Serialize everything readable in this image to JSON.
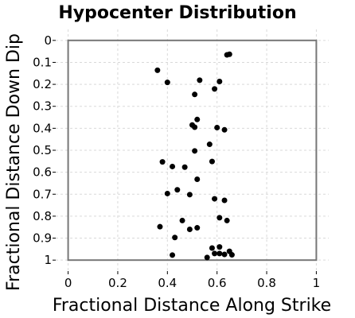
{
  "chart_data": {
    "type": "scatter",
    "title": "Hypocenter Distribution",
    "xlabel": "Fractional Distance Along Strike",
    "ylabel": "Fractional Distance Down Dip",
    "xlim": [
      -0.05,
      1.05
    ],
    "ylim": [
      1.05,
      -0.05
    ],
    "y_inverted": true,
    "grid": true,
    "xticks": [
      0,
      0.2,
      0.4,
      0.6,
      0.8,
      1
    ],
    "xtick_labels": [
      "0",
      "0.2",
      "0.4",
      "0.6",
      "0.8",
      "1"
    ],
    "yticks": [
      0,
      0.1,
      0.2,
      0.3,
      0.4,
      0.5,
      0.6,
      0.7,
      0.8,
      0.9,
      1
    ],
    "ytick_labels": [
      "0",
      "0.1",
      "0.2",
      "0.3",
      "0.4",
      "0.5",
      "0.6",
      "0.7",
      "0.8",
      "0.9",
      "1"
    ],
    "rupture_rectangle": {
      "x": [
        0,
        1
      ],
      "y": [
        0,
        1
      ]
    },
    "marker_color": "#000000",
    "frame_color": "#777777",
    "points": [
      {
        "x": 0.64,
        "y": 0.066
      },
      {
        "x": 0.65,
        "y": 0.063
      },
      {
        "x": 0.36,
        "y": 0.136
      },
      {
        "x": 0.4,
        "y": 0.191
      },
      {
        "x": 0.53,
        "y": 0.181
      },
      {
        "x": 0.61,
        "y": 0.187
      },
      {
        "x": 0.59,
        "y": 0.221
      },
      {
        "x": 0.51,
        "y": 0.246
      },
      {
        "x": 0.52,
        "y": 0.36
      },
      {
        "x": 0.5,
        "y": 0.385
      },
      {
        "x": 0.51,
        "y": 0.395
      },
      {
        "x": 0.6,
        "y": 0.397
      },
      {
        "x": 0.63,
        "y": 0.407
      },
      {
        "x": 0.57,
        "y": 0.473
      },
      {
        "x": 0.51,
        "y": 0.503
      },
      {
        "x": 0.38,
        "y": 0.553
      },
      {
        "x": 0.58,
        "y": 0.551
      },
      {
        "x": 0.42,
        "y": 0.574
      },
      {
        "x": 0.47,
        "y": 0.577
      },
      {
        "x": 0.52,
        "y": 0.632
      },
      {
        "x": 0.44,
        "y": 0.68
      },
      {
        "x": 0.4,
        "y": 0.697
      },
      {
        "x": 0.49,
        "y": 0.702
      },
      {
        "x": 0.59,
        "y": 0.721
      },
      {
        "x": 0.63,
        "y": 0.728
      },
      {
        "x": 0.61,
        "y": 0.807
      },
      {
        "x": 0.46,
        "y": 0.82
      },
      {
        "x": 0.64,
        "y": 0.82
      },
      {
        "x": 0.37,
        "y": 0.848
      },
      {
        "x": 0.49,
        "y": 0.86
      },
      {
        "x": 0.52,
        "y": 0.853
      },
      {
        "x": 0.43,
        "y": 0.897
      },
      {
        "x": 0.58,
        "y": 0.945
      },
      {
        "x": 0.61,
        "y": 0.94
      },
      {
        "x": 0.65,
        "y": 0.96
      },
      {
        "x": 0.59,
        "y": 0.97
      },
      {
        "x": 0.61,
        "y": 0.97
      },
      {
        "x": 0.63,
        "y": 0.974
      },
      {
        "x": 0.66,
        "y": 0.976
      },
      {
        "x": 0.42,
        "y": 0.977
      },
      {
        "x": 0.56,
        "y": 0.988
      }
    ]
  }
}
